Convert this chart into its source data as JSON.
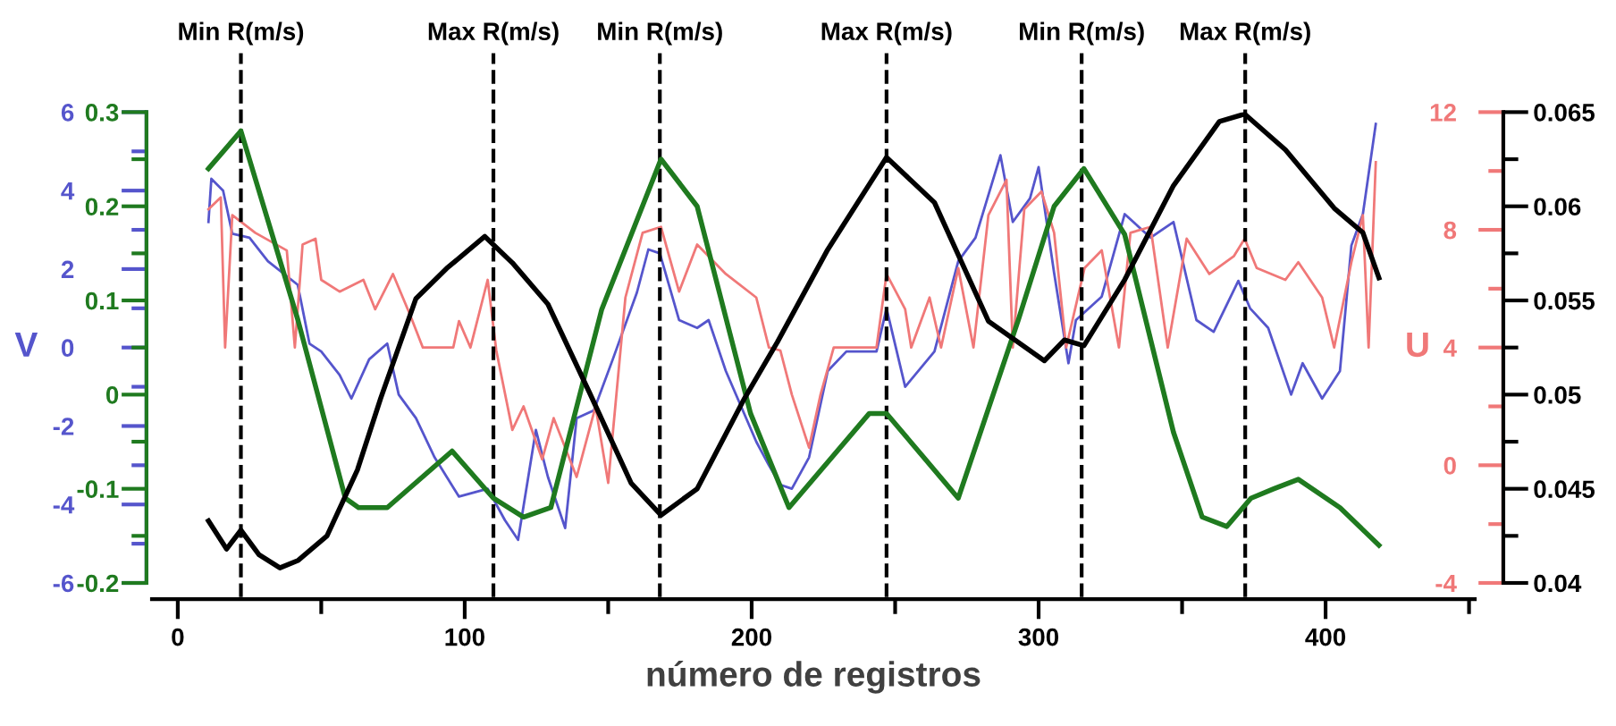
{
  "chart_data": [
    {
      "type": "line",
      "xlabel": "número de registros",
      "ylabel": "V",
      "y2label": "U",
      "xlim": [
        -9,
        452
      ],
      "xticks": [
        0,
        100,
        200,
        300,
        400,
        {
          "value": 50,
          "label": null
        },
        {
          "value": 150,
          "label": null
        },
        {
          "value": 250,
          "label": null
        },
        {
          "value": 350,
          "label": null
        },
        {
          "value": 450,
          "label": null
        }
      ],
      "ylim": [
        -6,
        6
      ],
      "yticks": [
        -6,
        -4,
        -2,
        0,
        2,
        4,
        6,
        {
          "value": -5,
          "label": null
        },
        {
          "value": -3,
          "label": null
        },
        {
          "value": -1,
          "label": null
        },
        {
          "value": 1,
          "label": null
        },
        {
          "value": 3,
          "label": null
        },
        {
          "value": 5,
          "label": null
        }
      ],
      "y2lim": [
        -4,
        12
      ],
      "y2ticks": [
        -4,
        0,
        4,
        8,
        12,
        {
          "value": -2,
          "label": null
        },
        {
          "value": 2,
          "label": null
        },
        {
          "value": 6,
          "label": null
        },
        {
          "value": 10,
          "label": null
        }
      ],
      "grid": false,
      "legend": false,
      "marker": "none",
      "line_style": "solid",
      "ref_lines": [
        {
          "axis": "x",
          "value": 22,
          "label": "Min R(m/s)",
          "color": "#000000",
          "line_style": "dashed"
        },
        {
          "axis": "x",
          "value": 110,
          "label": "Max R(m/s)",
          "color": "#000000",
          "line_style": "dashed"
        },
        {
          "axis": "x",
          "value": 168,
          "label": "Min R(m/s)",
          "color": "#000000",
          "line_style": "dashed"
        },
        {
          "axis": "x",
          "value": 247,
          "label": "Max R(m/s)",
          "color": "#000000",
          "line_style": "dashed"
        },
        {
          "axis": "x",
          "value": 315,
          "label": "Min R(m/s)",
          "color": "#000000",
          "line_style": "dashed"
        },
        {
          "axis": "x",
          "value": 372,
          "label": "Max R(m/s)",
          "color": "#000000",
          "line_style": "dashed"
        }
      ],
      "series": [
        {
          "axis": "y",
          "color": "#5555cc",
          "x": [
            10.7,
            11.7,
            15.8,
            19,
            25,
            31.4,
            41.8,
            45.9,
            50,
            56.4,
            60.5,
            66.7,
            73,
            77,
            83,
            89.5,
            98,
            108,
            114,
            118.6,
            124.8,
            129,
            135,
            139,
            145,
            151.6,
            160,
            164,
            168,
            174.7,
            181,
            185,
            191,
            201.6,
            206,
            210,
            214,
            220,
            226.5,
            233,
            243.5,
            247,
            253.5,
            263.7,
            272,
            278,
            286.7,
            291,
            297,
            300,
            305.4,
            310.4,
            313,
            322,
            330,
            339,
            347,
            355,
            361,
            369.6,
            373.7,
            380,
            388,
            392,
            398.8,
            405,
            409,
            413,
            417.5
          ],
          "values": [
            3.2,
            4.3,
            4.0,
            2.9,
            2.8,
            2.2,
            1.6,
            0.1,
            -0.1,
            -0.7,
            -1.3,
            -0.3,
            0.1,
            -1.2,
            -1.8,
            -2.8,
            -3.8,
            -3.6,
            -4.4,
            -4.9,
            -2.1,
            -3.3,
            -4.6,
            -1.8,
            -1.6,
            -0.3,
            1.4,
            2.5,
            2.4,
            0.7,
            0.5,
            0.7,
            -0.6,
            -2.4,
            -3.0,
            -3.5,
            -3.6,
            -2.8,
            -0.6,
            -0.1,
            -0.1,
            1.0,
            -1.0,
            -0.1,
            2.2,
            2.8,
            4.9,
            3.2,
            3.8,
            4.6,
            1.9,
            -0.4,
            0.7,
            1.3,
            3.4,
            2.8,
            3.2,
            0.7,
            0.4,
            1.7,
            1.0,
            0.5,
            -1.2,
            -0.4,
            -1.3,
            -0.6,
            2.6,
            3.4,
            5.7
          ]
        },
        {
          "axis": "y2",
          "color": "#f07878",
          "x": [
            10.7,
            15,
            16.5,
            19,
            27,
            38,
            40.8,
            43.5,
            48,
            50,
            56.4,
            64.7,
            68.8,
            75,
            81,
            85.4,
            96,
            98,
            102,
            108,
            111,
            116.6,
            120.5,
            127,
            131,
            139,
            145.6,
            150,
            156,
            162,
            168.4,
            174.7,
            181,
            191,
            201.6,
            206,
            210,
            214,
            220,
            224,
            228.6,
            237,
            243.5,
            247,
            253.5,
            255.6,
            262,
            266,
            272,
            277.3,
            282.5,
            288.8,
            291,
            295,
            301,
            305.4,
            309.6,
            316,
            322,
            328,
            332,
            339,
            345,
            351.6,
            359.5,
            368,
            371.8,
            376,
            386,
            390.5,
            398.8,
            403,
            409,
            413,
            415,
            417.5
          ],
          "values": [
            8.7,
            9.1,
            4,
            8.5,
            7.9,
            7.3,
            4,
            7.5,
            7.7,
            6.3,
            5.9,
            6.3,
            5.3,
            6.5,
            5.1,
            4,
            4,
            4.9,
            4,
            6.3,
            3.9,
            1.2,
            2.0,
            0.2,
            1.6,
            -0.4,
            2.0,
            -0.6,
            5.7,
            7.9,
            8.1,
            5.9,
            7.5,
            6.5,
            5.7,
            4,
            3.9,
            2.4,
            0.6,
            2.4,
            4,
            4,
            4,
            6.5,
            5.3,
            4,
            5.7,
            4,
            6.7,
            4,
            8.5,
            9.7,
            4,
            8.7,
            9.3,
            7.9,
            4,
            6.7,
            7.3,
            4,
            7.9,
            8.1,
            4,
            7.7,
            6.5,
            7.1,
            7.7,
            6.7,
            6.3,
            6.9,
            5.7,
            4,
            6.9,
            8.5,
            4,
            10.3
          ]
        }
      ]
    },
    {
      "type": "line",
      "tick_labels": "y",
      "xlim": [
        -9,
        452
      ],
      "ylim": [
        -0.2,
        0.3
      ],
      "yticks": [
        -0.2,
        -0.1,
        0,
        0.1,
        0.2,
        0.3,
        {
          "value": -0.15,
          "label": null
        },
        {
          "value": -0.05,
          "label": null
        },
        {
          "value": 0.05,
          "label": null
        },
        {
          "value": 0.15,
          "label": null
        },
        {
          "value": 0.25,
          "label": null
        }
      ],
      "y2lim": [
        0.04,
        0.065
      ],
      "y2ticks": [
        0.04,
        0.045,
        0.05,
        0.055,
        0.06,
        0.065,
        {
          "value": 0.0425,
          "label": null
        },
        {
          "value": 0.0475,
          "label": null
        },
        {
          "value": 0.0525,
          "label": null
        },
        {
          "value": 0.0575,
          "label": null
        },
        {
          "value": 0.0625,
          "label": null
        }
      ],
      "grid": false,
      "legend": false,
      "marker": "none",
      "line_style": "solid",
      "series": [
        {
          "axis": "y",
          "color": "#1f7a1f",
          "x": [
            10.7,
            22,
            41.8,
            58.4,
            63,
            73,
            95.6,
            110,
            120.5,
            130,
            147.7,
            168.4,
            181,
            199.6,
            213,
            241,
            247,
            272,
            293,
            305.4,
            315.8,
            330,
            347,
            357,
            365.6,
            374,
            382,
            390.5,
            405,
            418.6
          ],
          "values": [
            0.24,
            0.28,
            0.08,
            -0.11,
            -0.12,
            -0.12,
            -0.06,
            -0.11,
            -0.13,
            -0.12,
            0.09,
            0.25,
            0.2,
            -0.02,
            -0.12,
            -0.02,
            -0.02,
            -0.11,
            0.08,
            0.2,
            0.24,
            0.17,
            -0.04,
            -0.13,
            -0.14,
            -0.11,
            -0.1,
            -0.09,
            -0.12,
            -0.16
          ]
        },
        {
          "axis": "y2",
          "color": "#000000",
          "x": [
            10.7,
            17,
            22,
            28.3,
            35.6,
            42,
            52,
            62.6,
            70.7,
            83,
            93.7,
            107,
            116.6,
            129,
            143.5,
            158,
            168.4,
            181,
            197.5,
            209,
            226.5,
            247,
            263.7,
            282.5,
            302,
            309,
            315.8,
            330,
            347,
            363,
            371.8,
            386,
            403,
            413,
            418.6
          ],
          "values": [
            0.0433,
            0.0418,
            0.0428,
            0.0415,
            0.0408,
            0.0412,
            0.0425,
            0.046,
            0.0498,
            0.0551,
            0.0567,
            0.0584,
            0.057,
            0.0548,
            0.0501,
            0.0453,
            0.0436,
            0.045,
            0.0498,
            0.0528,
            0.0577,
            0.0626,
            0.0602,
            0.0539,
            0.0518,
            0.0529,
            0.0526,
            0.0561,
            0.0611,
            0.0645,
            0.0649,
            0.063,
            0.0599,
            0.0586,
            0.0562
          ]
        }
      ]
    }
  ]
}
